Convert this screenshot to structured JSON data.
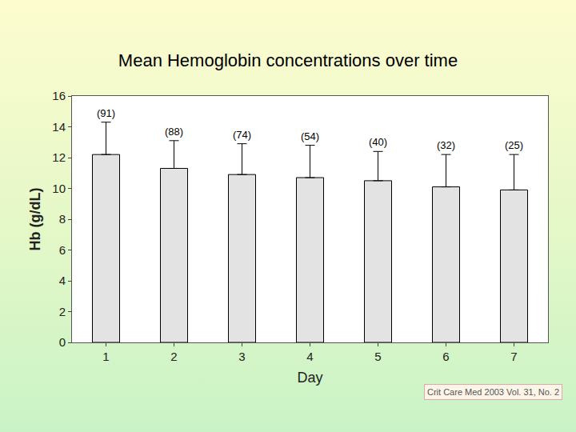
{
  "chart_data": {
    "type": "bar",
    "title": "Mean Hemoglobin concentrations over time",
    "x_label": "Day",
    "y_label": "Hb (g/dL)",
    "categories": [
      "1",
      "2",
      "3",
      "4",
      "5",
      "6",
      "7"
    ],
    "values": [
      12.2,
      11.3,
      10.9,
      10.7,
      10.5,
      10.1,
      9.9
    ],
    "error": [
      2.1,
      1.8,
      2.0,
      2.1,
      1.9,
      2.1,
      2.3
    ],
    "n_labels": [
      "(91)",
      "(88)",
      "(74)",
      "(54)",
      "(40)",
      "(32)",
      "(25)"
    ],
    "note": "Crit Care Med 2003 Vol. 31, No. 2",
    "color": "#e3e3e3",
    "ylim": [
      0,
      16
    ],
    "yticks": [
      0,
      2,
      4,
      6,
      8,
      10,
      12,
      14,
      16
    ],
    "grid": false
  }
}
